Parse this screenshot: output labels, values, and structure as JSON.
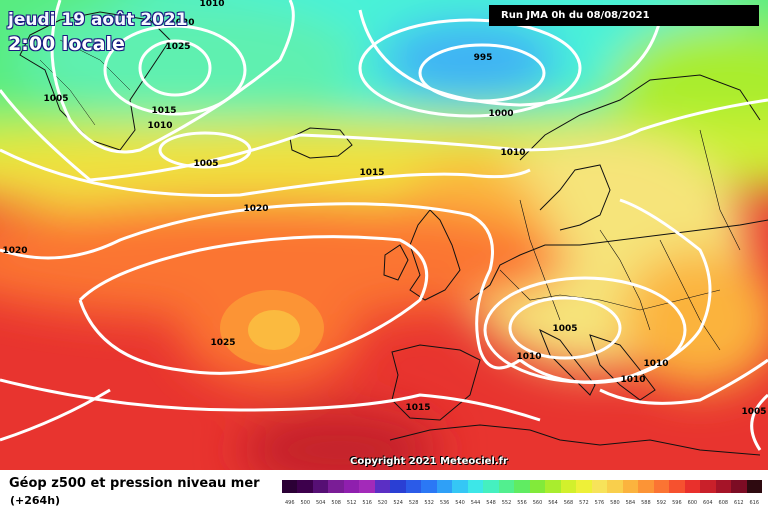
{
  "header": {
    "date_line": "jeudi 19 août 2021",
    "time_line": "2:00 locale",
    "run_info": "Run JMA 0h du 08/08/2021"
  },
  "credit": "Copyright 2021 Meteociel.fr",
  "legend": {
    "title": "Géop z500 et pression niveau mer",
    "subtitle": "(+264h)",
    "scale_labels": [
      "496",
      "500",
      "504",
      "508",
      "512",
      "516",
      "520",
      "524",
      "528",
      "532",
      "536",
      "540",
      "544",
      "548",
      "552",
      "556",
      "560",
      "564",
      "568",
      "572",
      "576",
      "580",
      "584",
      "588",
      "592",
      "596",
      "600",
      "604",
      "608",
      "612",
      "616"
    ],
    "scale_colors": [
      "#2b0035",
      "#3d004c",
      "#560f74",
      "#7a1d96",
      "#8f1fae",
      "#a32ab9",
      "#5b2fc4",
      "#2a3fd4",
      "#2b5be8",
      "#2b78f5",
      "#2fa0f7",
      "#35c7f5",
      "#3de7e8",
      "#45f0c0",
      "#52ef8f",
      "#60ec62",
      "#82ea3a",
      "#a9ed2e",
      "#d2f02c",
      "#eef038",
      "#f7e35a",
      "#f9cf4c",
      "#fbb33e",
      "#fc9436",
      "#fb7433",
      "#f6512f",
      "#e9302c",
      "#c9202a",
      "#a51428",
      "#7c0c24",
      "#2e0a10"
    ]
  },
  "map": {
    "pressure_labels": [
      "1010",
      "1020",
      "1025",
      "1005",
      "1015",
      "1010",
      "1005",
      "995",
      "1000",
      "1010",
      "1015",
      "1020",
      "1020",
      "1025",
      "1005",
      "1010",
      "1010",
      "1010",
      "1015",
      "1005"
    ]
  }
}
